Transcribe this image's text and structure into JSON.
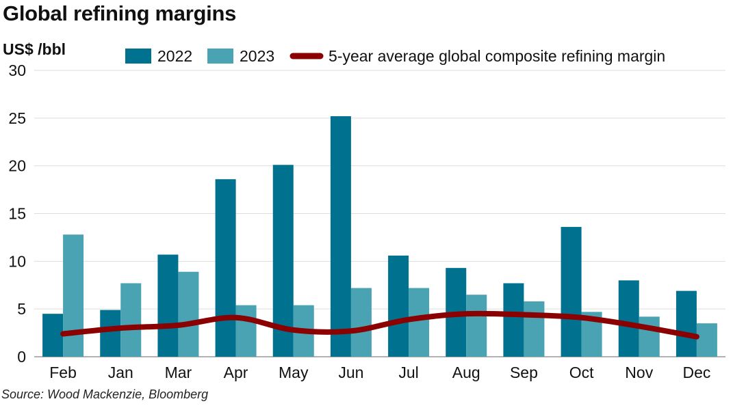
{
  "chart_data": {
    "type": "bar",
    "title": "Global refining margins",
    "ylabel": "US$ /bbl",
    "xlabel": "",
    "source": "Source: Wood Mackenzie, Bloomberg",
    "ylim": [
      0,
      30
    ],
    "yticks": [
      0,
      5,
      10,
      15,
      20,
      25,
      30
    ],
    "grid": true,
    "legend_position": "top",
    "categories": [
      "Feb",
      "Jan",
      "Mar",
      "Apr",
      "May",
      "Jun",
      "Jul",
      "Aug",
      "Sep",
      "Oct",
      "Nov",
      "Dec"
    ],
    "series": [
      {
        "name": "2022",
        "type": "bar",
        "color": "#00728f",
        "values": [
          4.5,
          4.9,
          10.7,
          18.6,
          20.1,
          25.2,
          10.6,
          9.3,
          7.7,
          13.6,
          8.0,
          6.9
        ]
      },
      {
        "name": "2023",
        "type": "bar",
        "color": "#4aa3b3",
        "values": [
          12.8,
          7.7,
          8.9,
          5.4,
          5.4,
          7.2,
          7.2,
          6.5,
          5.8,
          4.7,
          4.2,
          3.5
        ]
      },
      {
        "name": "5-year average global composite refining margin",
        "type": "line",
        "color": "#8b0000",
        "values": [
          2.4,
          3.0,
          3.3,
          4.1,
          2.8,
          2.7,
          3.9,
          4.5,
          4.4,
          4.1,
          3.2,
          2.1
        ]
      }
    ]
  }
}
